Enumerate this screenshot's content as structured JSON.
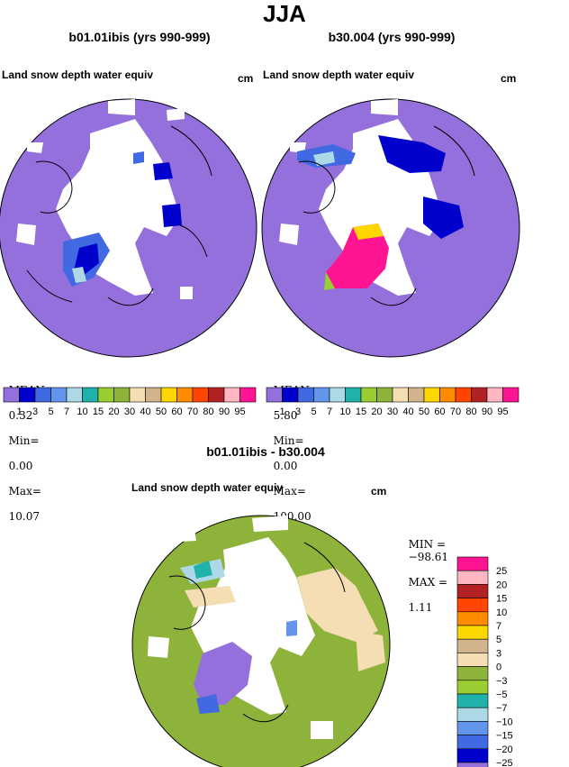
{
  "season": "JJA",
  "left": {
    "case_title": "b01.01ibis (yrs 990-999)",
    "var_label": "Land snow depth water equiv",
    "units": "cm",
    "stats": {
      "mean_label": "MEAN=",
      "mean": "0.32",
      "min_label": "Min=",
      "min": "0.00",
      "max_label": "Max=",
      "max": "10.07"
    }
  },
  "right": {
    "case_title": "b30.004 (yrs 990-999)",
    "var_label": "Land snow depth water equiv",
    "units": "cm",
    "stats": {
      "mean_label": "MEAN=",
      "mean": "5.80",
      "min_label": "Min=",
      "min": "0.00",
      "max_label": "Max=",
      "max": "100.00"
    }
  },
  "top_colorbar": {
    "labels": [
      "1",
      "3",
      "5",
      "7",
      "10",
      "15",
      "20",
      "30",
      "40",
      "50",
      "60",
      "70",
      "80",
      "90",
      "95"
    ],
    "colors": [
      "#9370DB",
      "#0000CD",
      "#4169E1",
      "#6495ED",
      "#ADD8E6",
      "#20B2AA",
      "#9ACD32",
      "#8DB33A",
      "#F5DEB3",
      "#D2B48C",
      "#FFD700",
      "#FF8C00",
      "#FF4500",
      "#B22222",
      "#FFB6C1",
      "#FF1493"
    ]
  },
  "diff": {
    "title": "b01.01ibis - b30.004",
    "var_label": "Land snow depth water equiv",
    "units": "cm",
    "stats": {
      "min_label": "MIN =",
      "min": "−98.61",
      "max_label": "MAX =",
      "max": "1.11"
    }
  },
  "diff_colorbar": {
    "labels": [
      "25",
      "20",
      "15",
      "10",
      "7",
      "5",
      "3",
      "0",
      "−3",
      "−5",
      "−7",
      "−10",
      "−15",
      "−20",
      "−25"
    ],
    "colors": [
      "#FF1493",
      "#FFB6C1",
      "#B22222",
      "#FF4500",
      "#FF8C00",
      "#FFD700",
      "#D2B48C",
      "#F5DEB3",
      "#8DB33A",
      "#9ACD32",
      "#20B2AA",
      "#ADD8E6",
      "#6495ED",
      "#4169E1",
      "#0000CD",
      "#9370DB"
    ]
  }
}
